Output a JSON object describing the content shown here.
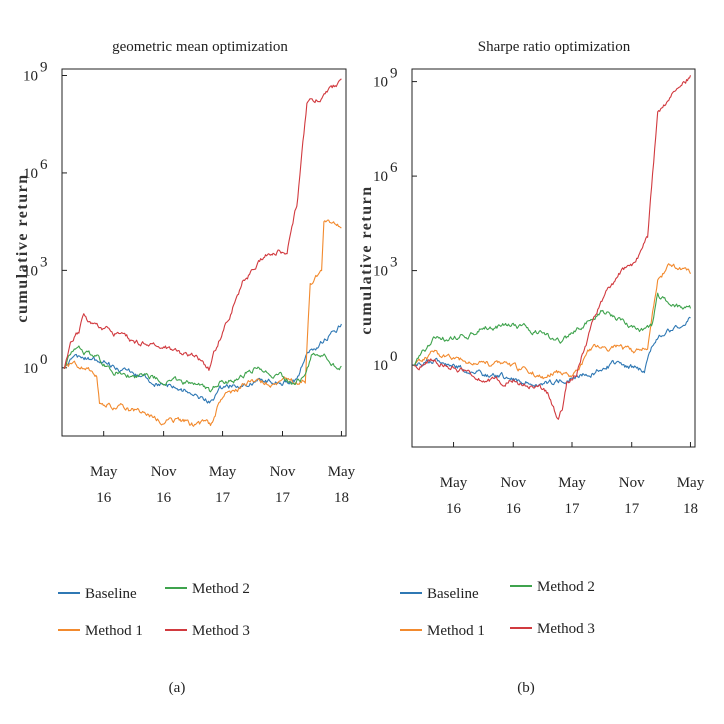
{
  "chart_data": [
    {
      "type": "line",
      "title": "geometric mean optimization",
      "ylabel": "cumulative return",
      "yscale": "log",
      "ytick_labels": [
        {
          "base": "10",
          "exp": "0"
        },
        {
          "base": "10",
          "exp": "3"
        },
        {
          "base": "10",
          "exp": "6"
        },
        {
          "base": "10",
          "exp": "9"
        }
      ],
      "yticks": [
        0,
        3,
        6,
        9
      ],
      "ylim_log10": [
        -2.1,
        9.2
      ],
      "x_ticks": [
        {
          "top": "May",
          "bottom": "16"
        },
        {
          "top": "Nov",
          "bottom": "16"
        },
        {
          "top": "May",
          "bottom": "17"
        },
        {
          "top": "Nov",
          "bottom": "17"
        },
        {
          "top": "May",
          "bottom": "18"
        }
      ],
      "x_tick_dates": [
        "2016-05-01",
        "2016-11-01",
        "2017-05-01",
        "2017-11-01",
        "2018-05-01"
      ],
      "xlim": [
        "2015-12-25",
        "2018-05-15"
      ],
      "series": [
        {
          "name": "Baseline",
          "color": "#2f78b4",
          "points": [
            [
              "2016-01-01",
              0.0
            ],
            [
              "2016-02-01",
              0.4
            ],
            [
              "2016-04-01",
              0.2
            ],
            [
              "2016-06-01",
              0.05
            ],
            [
              "2016-08-01",
              -0.2
            ],
            [
              "2016-10-01",
              -0.45
            ],
            [
              "2016-12-01",
              -0.6
            ],
            [
              "2017-02-01",
              -0.8
            ],
            [
              "2017-03-25",
              -1.0
            ],
            [
              "2017-04-20",
              -0.65
            ],
            [
              "2017-07-01",
              -0.45
            ],
            [
              "2017-09-01",
              -0.3
            ],
            [
              "2017-11-01",
              -0.45
            ],
            [
              "2017-12-15",
              -0.4
            ],
            [
              "2018-01-15",
              0.5
            ],
            [
              "2018-02-20",
              0.7
            ],
            [
              "2018-03-25",
              1.0
            ],
            [
              "2018-05-01",
              1.35
            ]
          ]
        },
        {
          "name": "Method 1",
          "color": "#f28a2e",
          "points": [
            [
              "2016-01-01",
              0.0
            ],
            [
              "2016-02-01",
              0.1
            ],
            [
              "2016-03-15",
              -0.1
            ],
            [
              "2016-04-10",
              -0.2
            ],
            [
              "2016-04-18",
              -1.1
            ],
            [
              "2016-06-01",
              -1.15
            ],
            [
              "2016-08-01",
              -1.35
            ],
            [
              "2016-10-01",
              -1.55
            ],
            [
              "2016-12-01",
              -1.65
            ],
            [
              "2017-02-01",
              -1.75
            ],
            [
              "2017-03-25",
              -1.8
            ],
            [
              "2017-04-20",
              -1.1
            ],
            [
              "2017-07-01",
              -0.5
            ],
            [
              "2017-08-15",
              -0.35
            ],
            [
              "2017-10-01",
              -0.4
            ],
            [
              "2017-12-01",
              -0.45
            ],
            [
              "2018-01-10",
              -0.35
            ],
            [
              "2018-01-25",
              2.6
            ],
            [
              "2018-02-20",
              2.8
            ],
            [
              "2018-03-01",
              2.9
            ],
            [
              "2018-03-08",
              4.5
            ],
            [
              "2018-04-01",
              4.4
            ],
            [
              "2018-05-01",
              4.3
            ]
          ]
        },
        {
          "name": "Method 2",
          "color": "#3fa34d",
          "points": [
            [
              "2016-01-01",
              0.0
            ],
            [
              "2016-01-20",
              0.5
            ],
            [
              "2016-02-15",
              0.6
            ],
            [
              "2016-04-01",
              0.35
            ],
            [
              "2016-06-01",
              -0.05
            ],
            [
              "2016-08-01",
              -0.3
            ],
            [
              "2016-10-01",
              -0.3
            ],
            [
              "2016-12-01",
              -0.45
            ],
            [
              "2017-02-01",
              -0.5
            ],
            [
              "2017-03-25",
              -0.8
            ],
            [
              "2017-04-20",
              -0.4
            ],
            [
              "2017-07-01",
              -0.3
            ],
            [
              "2017-08-15",
              0.1
            ],
            [
              "2017-10-01",
              -0.15
            ],
            [
              "2017-12-01",
              -0.45
            ],
            [
              "2018-01-10",
              -0.2
            ],
            [
              "2018-02-01",
              0.4
            ],
            [
              "2018-03-15",
              0.45
            ],
            [
              "2018-04-15",
              0.05
            ],
            [
              "2018-05-01",
              0.05
            ]
          ]
        },
        {
          "name": "Method 3",
          "color": "#d13a3f",
          "points": [
            [
              "2016-01-01",
              0.0
            ],
            [
              "2016-01-20",
              0.9
            ],
            [
              "2016-02-15",
              1.1
            ],
            [
              "2016-03-01",
              1.6
            ],
            [
              "2016-04-01",
              1.35
            ],
            [
              "2016-06-01",
              1.1
            ],
            [
              "2016-08-01",
              0.8
            ],
            [
              "2016-10-01",
              0.7
            ],
            [
              "2016-12-01",
              0.55
            ],
            [
              "2017-02-01",
              0.4
            ],
            [
              "2017-03-20",
              -0.1
            ],
            [
              "2017-04-01",
              0.4
            ],
            [
              "2017-05-01",
              1.1
            ],
            [
              "2017-06-01",
              1.9
            ],
            [
              "2017-07-01",
              2.6
            ],
            [
              "2017-08-01",
              3.0
            ],
            [
              "2017-09-01",
              3.4
            ],
            [
              "2017-10-15",
              3.6
            ],
            [
              "2017-11-15",
              3.55
            ],
            [
              "2017-12-15",
              5.0
            ],
            [
              "2018-01-15",
              8.1
            ],
            [
              "2018-02-15",
              8.3
            ],
            [
              "2018-03-15",
              8.5
            ],
            [
              "2018-04-15",
              8.7
            ],
            [
              "2018-05-01",
              8.9
            ]
          ]
        }
      ],
      "legend": [
        "Baseline",
        "Method 1",
        "Method 2",
        "Method 3"
      ],
      "legend_placement": "bottom",
      "caption": "(a)"
    },
    {
      "type": "line",
      "title": "Sharpe ratio optimization",
      "ylabel": "cumulative return",
      "yscale": "log",
      "ytick_labels": [
        {
          "base": "10",
          "exp": "0"
        },
        {
          "base": "10",
          "exp": "3"
        },
        {
          "base": "10",
          "exp": "6"
        },
        {
          "base": "10",
          "exp": "9"
        }
      ],
      "yticks": [
        0,
        3,
        6,
        9
      ],
      "ylim_log10": [
        -2.6,
        9.4
      ],
      "x_ticks": [
        {
          "top": "May",
          "bottom": "16"
        },
        {
          "top": "Nov",
          "bottom": "16"
        },
        {
          "top": "May",
          "bottom": "17"
        },
        {
          "top": "Nov",
          "bottom": "17"
        },
        {
          "top": "May",
          "bottom": "18"
        }
      ],
      "x_tick_dates": [
        "2016-05-01",
        "2016-11-01",
        "2017-05-01",
        "2017-11-01",
        "2018-05-01"
      ],
      "xlim": [
        "2015-12-25",
        "2018-05-15"
      ],
      "series": [
        {
          "name": "Baseline",
          "color": "#2f78b4",
          "points": [
            [
              "2016-01-01",
              0.0
            ],
            [
              "2016-03-01",
              0.2
            ],
            [
              "2016-05-01",
              0.0
            ],
            [
              "2016-08-01",
              -0.3
            ],
            [
              "2016-11-01",
              -0.45
            ],
            [
              "2017-02-01",
              -0.6
            ],
            [
              "2017-05-01",
              -0.4
            ],
            [
              "2017-07-01",
              -0.2
            ],
            [
              "2017-09-01",
              0.0
            ],
            [
              "2017-11-01",
              -0.1
            ],
            [
              "2017-12-10",
              -0.2
            ],
            [
              "2018-01-10",
              0.8
            ],
            [
              "2018-03-01",
              1.1
            ],
            [
              "2018-05-01",
              1.5
            ]
          ]
        },
        {
          "name": "Method 1",
          "color": "#f28a2e",
          "points": [
            [
              "2016-01-01",
              0.0
            ],
            [
              "2016-03-01",
              0.4
            ],
            [
              "2016-05-01",
              0.15
            ],
            [
              "2016-08-01",
              0.1
            ],
            [
              "2016-11-01",
              -0.1
            ],
            [
              "2017-02-01",
              -0.35
            ],
            [
              "2017-04-01",
              -0.2
            ],
            [
              "2017-05-01",
              -0.4
            ],
            [
              "2017-07-01",
              0.5
            ],
            [
              "2017-09-01",
              0.6
            ],
            [
              "2017-11-01",
              0.4
            ],
            [
              "2017-12-20",
              0.6
            ],
            [
              "2018-01-20",
              2.6
            ],
            [
              "2018-03-01",
              3.2
            ],
            [
              "2018-04-01",
              3.0
            ],
            [
              "2018-05-01",
              2.9
            ]
          ]
        },
        {
          "name": "Method 2",
          "color": "#3fa34d",
          "points": [
            [
              "2016-01-01",
              0.0
            ],
            [
              "2016-03-01",
              0.8
            ],
            [
              "2016-05-01",
              0.85
            ],
            [
              "2016-08-01",
              1.2
            ],
            [
              "2016-11-01",
              1.3
            ],
            [
              "2017-02-01",
              1.0
            ],
            [
              "2017-04-01",
              0.7
            ],
            [
              "2017-06-01",
              1.2
            ],
            [
              "2017-08-01",
              1.8
            ],
            [
              "2017-10-01",
              1.4
            ],
            [
              "2017-12-01",
              1.1
            ],
            [
              "2018-01-01",
              1.2
            ],
            [
              "2018-01-20",
              2.2
            ],
            [
              "2018-03-01",
              1.9
            ],
            [
              "2018-05-01",
              1.8
            ]
          ]
        },
        {
          "name": "Method 3",
          "color": "#d13a3f",
          "points": [
            [
              "2016-01-01",
              0.0
            ],
            [
              "2016-03-01",
              0.2
            ],
            [
              "2016-05-01",
              -0.1
            ],
            [
              "2016-08-01",
              -0.4
            ],
            [
              "2016-10-01",
              -0.6
            ],
            [
              "2016-11-01",
              -0.5
            ],
            [
              "2017-01-01",
              -0.6
            ],
            [
              "2017-02-15",
              -0.9
            ],
            [
              "2017-03-20",
              -1.8
            ],
            [
              "2017-04-01",
              -1.4
            ],
            [
              "2017-04-15",
              -0.6
            ],
            [
              "2017-05-15",
              -0.2
            ],
            [
              "2017-07-01",
              1.2
            ],
            [
              "2017-08-01",
              2.0
            ],
            [
              "2017-09-01",
              2.6
            ],
            [
              "2017-10-01",
              3.0
            ],
            [
              "2017-11-01",
              3.2
            ],
            [
              "2017-12-20",
              4.0
            ],
            [
              "2018-01-20",
              8.0
            ],
            [
              "2018-02-20",
              8.4
            ],
            [
              "2018-03-20",
              8.8
            ],
            [
              "2018-05-01",
              9.2
            ]
          ]
        }
      ],
      "legend": [
        "Baseline",
        "Method 1",
        "Method 2",
        "Method 3"
      ],
      "legend_placement": "bottom",
      "caption": "(b)"
    }
  ]
}
